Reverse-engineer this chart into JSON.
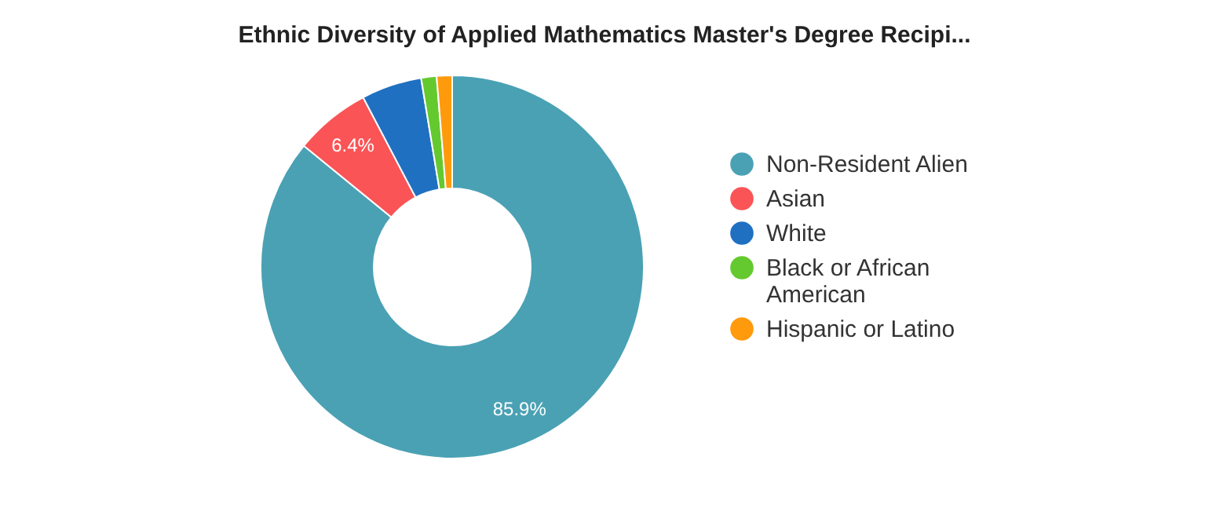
{
  "chart_data": {
    "type": "donut",
    "title": "Ethnic Diversity of Applied Mathematics Master's Degree Recipi...",
    "categories": [
      "Non-Resident Alien",
      "Asian",
      "White",
      "Black or African American",
      "Hispanic or Latino"
    ],
    "values": [
      85.9,
      6.4,
      5.1,
      1.3,
      1.3
    ],
    "colors": [
      "#4aa1b4",
      "#fa5456",
      "#1f70c1",
      "#64c92e",
      "#ff9a0d"
    ],
    "value_labels": [
      "85.9%",
      "6.4%",
      null,
      null,
      null
    ],
    "legend": "right"
  }
}
